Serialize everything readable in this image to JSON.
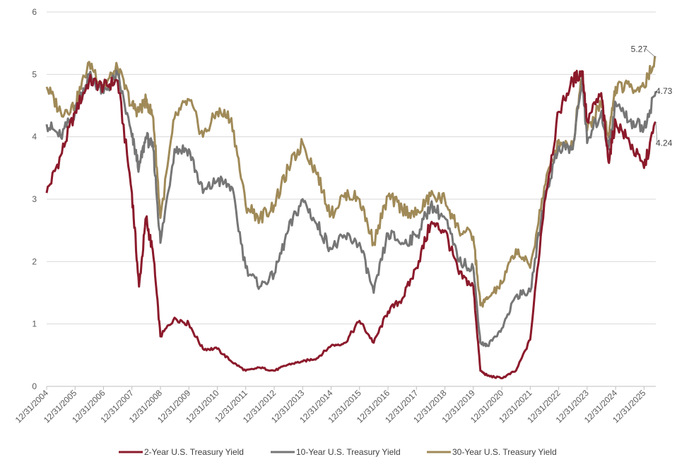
{
  "colors": {
    "two_year": "#8B1A2B",
    "ten_year": "#767676",
    "thirty_year": "#A08A58",
    "grid": "#D9D9D9",
    "axis": "#BFBFBF"
  },
  "chart_data": {
    "type": "line",
    "ylim": [
      0,
      6
    ],
    "y_ticks": [
      "0",
      "1",
      "2",
      "3",
      "4",
      "5",
      "6"
    ],
    "x_tick_labels": [
      "12/31/2004",
      "12/31/2005",
      "12/31/2006",
      "12/31/2007",
      "12/31/2008",
      "12/31/2009",
      "12/31/2010",
      "12/31/2011",
      "12/31/2012",
      "12/31/2013",
      "12/31/2014",
      "12/31/2015",
      "12/31/2016",
      "12/31/2017",
      "12/31/2018",
      "12/31/2019",
      "12/31/2020",
      "12/31/2021",
      "12/31/2022",
      "12/31/2023",
      "12/31/2024",
      "12/31/2025"
    ],
    "x_range": [
      "2004-12-31",
      "2026-05-31"
    ],
    "grid": "horizontal",
    "legend_position": "bottom",
    "x": [
      "2004-12-31",
      "2005-06-30",
      "2005-12-31",
      "2006-06-30",
      "2006-12-31",
      "2007-06-30",
      "2007-12-31",
      "2008-03-31",
      "2008-06-30",
      "2008-09-30",
      "2008-12-31",
      "2009-06-30",
      "2009-12-31",
      "2010-06-30",
      "2010-12-31",
      "2011-06-30",
      "2011-12-31",
      "2012-06-30",
      "2012-12-31",
      "2013-06-30",
      "2013-12-31",
      "2014-06-30",
      "2014-12-31",
      "2015-06-30",
      "2015-12-31",
      "2016-06-30",
      "2016-12-31",
      "2017-06-30",
      "2017-12-31",
      "2018-06-30",
      "2018-12-31",
      "2019-06-30",
      "2019-12-31",
      "2020-03-31",
      "2020-06-30",
      "2020-12-31",
      "2021-06-30",
      "2021-12-31",
      "2022-06-30",
      "2022-12-31",
      "2023-06-30",
      "2023-10-31",
      "2023-12-31",
      "2024-06-30",
      "2024-09-30",
      "2024-12-31",
      "2025-06-30",
      "2025-12-31",
      "2026-05-31"
    ],
    "series": [
      {
        "name": "2-Year U.S. Treasury Yield",
        "color_key": "two_year",
        "values": [
          3.1,
          3.7,
          4.4,
          4.9,
          4.8,
          4.9,
          3.1,
          1.6,
          2.7,
          2.1,
          0.8,
          1.1,
          1.0,
          0.6,
          0.6,
          0.4,
          0.25,
          0.3,
          0.25,
          0.35,
          0.4,
          0.45,
          0.65,
          0.7,
          1.05,
          0.7,
          1.2,
          1.4,
          1.9,
          2.6,
          2.5,
          1.8,
          1.6,
          0.25,
          0.17,
          0.13,
          0.25,
          0.75,
          2.95,
          4.4,
          4.9,
          5.05,
          4.25,
          4.7,
          3.6,
          4.25,
          3.9,
          3.5,
          4.24
        ],
        "end_label": "4.24"
      },
      {
        "name": "10-Year U.S. Treasury Yield",
        "color_key": "ten_year",
        "values": [
          4.2,
          4.0,
          4.4,
          5.0,
          4.7,
          5.0,
          4.0,
          3.5,
          4.0,
          3.8,
          2.3,
          3.8,
          3.8,
          3.1,
          3.3,
          3.2,
          1.9,
          1.6,
          1.8,
          2.5,
          3.0,
          2.6,
          2.2,
          2.4,
          2.3,
          1.5,
          2.45,
          2.3,
          2.4,
          2.9,
          2.7,
          2.0,
          1.9,
          0.7,
          0.65,
          0.93,
          1.45,
          1.52,
          3.0,
          3.85,
          3.8,
          4.95,
          3.9,
          4.4,
          3.8,
          4.55,
          4.25,
          4.15,
          4.73
        ],
        "end_label": "4.73"
      },
      {
        "name": "30-Year U.S. Treasury Yield",
        "color_key": "thirty_year",
        "values": [
          4.8,
          4.4,
          4.5,
          5.2,
          4.8,
          5.1,
          4.5,
          4.4,
          4.6,
          4.3,
          2.7,
          4.3,
          4.6,
          4.0,
          4.4,
          4.3,
          2.9,
          2.7,
          2.9,
          3.5,
          3.9,
          3.4,
          2.75,
          3.1,
          3.0,
          2.3,
          3.05,
          2.85,
          2.75,
          3.05,
          3.0,
          2.5,
          2.4,
          1.3,
          1.4,
          1.65,
          2.2,
          1.9,
          3.2,
          3.95,
          3.85,
          5.05,
          4.1,
          4.55,
          4.0,
          4.8,
          4.8,
          4.8,
          5.27
        ],
        "end_label": "5.27"
      }
    ]
  }
}
